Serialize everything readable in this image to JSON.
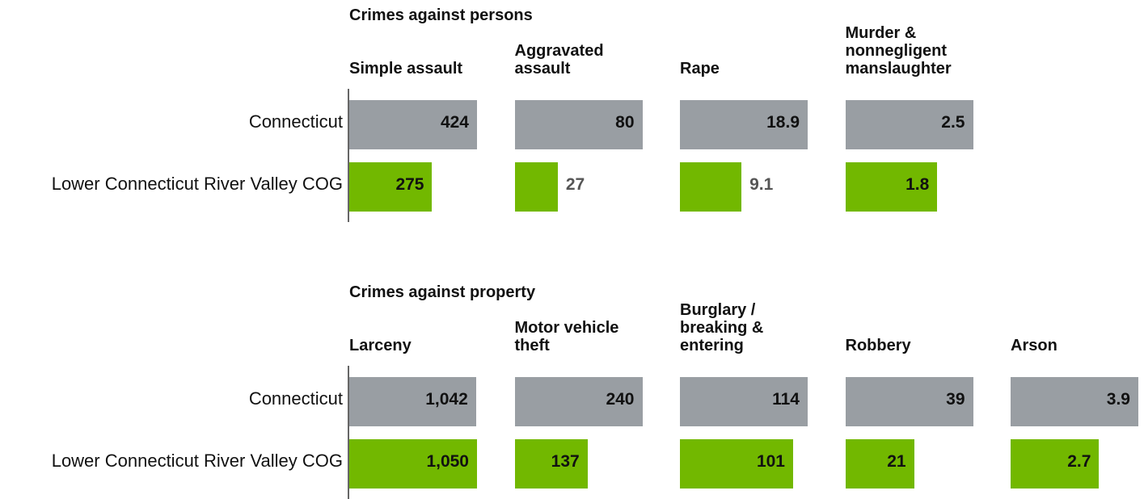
{
  "chart_data": {
    "type": "bar",
    "series": [
      {
        "name": "Connecticut",
        "color": "#999ea3"
      },
      {
        "name": "Lower Connecticut River Valley COG",
        "color": "#72b800"
      }
    ],
    "groups": [
      {
        "title": "Crimes against persons",
        "panels": [
          {
            "title": "Simple assault",
            "values": [
              424,
              275
            ]
          },
          {
            "title": "Aggravated assault",
            "values": [
              80,
              27
            ]
          },
          {
            "title": "Rape",
            "values": [
              18.9,
              9.1
            ]
          },
          {
            "title": "Murder & nonnegligent manslaughter",
            "values": [
              2.5,
              1.8
            ]
          }
        ]
      },
      {
        "title": "Crimes against property",
        "panels": [
          {
            "title": "Larceny",
            "values": [
              1042,
              1050
            ],
            "value_labels": [
              "1,042",
              "1,050"
            ]
          },
          {
            "title": "Motor vehicle theft",
            "values": [
              240,
              137
            ]
          },
          {
            "title": "Burglary / breaking & entering",
            "values": [
              114,
              101
            ]
          },
          {
            "title": "Robbery",
            "values": [
              39,
              21
            ]
          },
          {
            "title": "Arson",
            "values": [
              3.9,
              2.7
            ]
          }
        ]
      }
    ]
  }
}
